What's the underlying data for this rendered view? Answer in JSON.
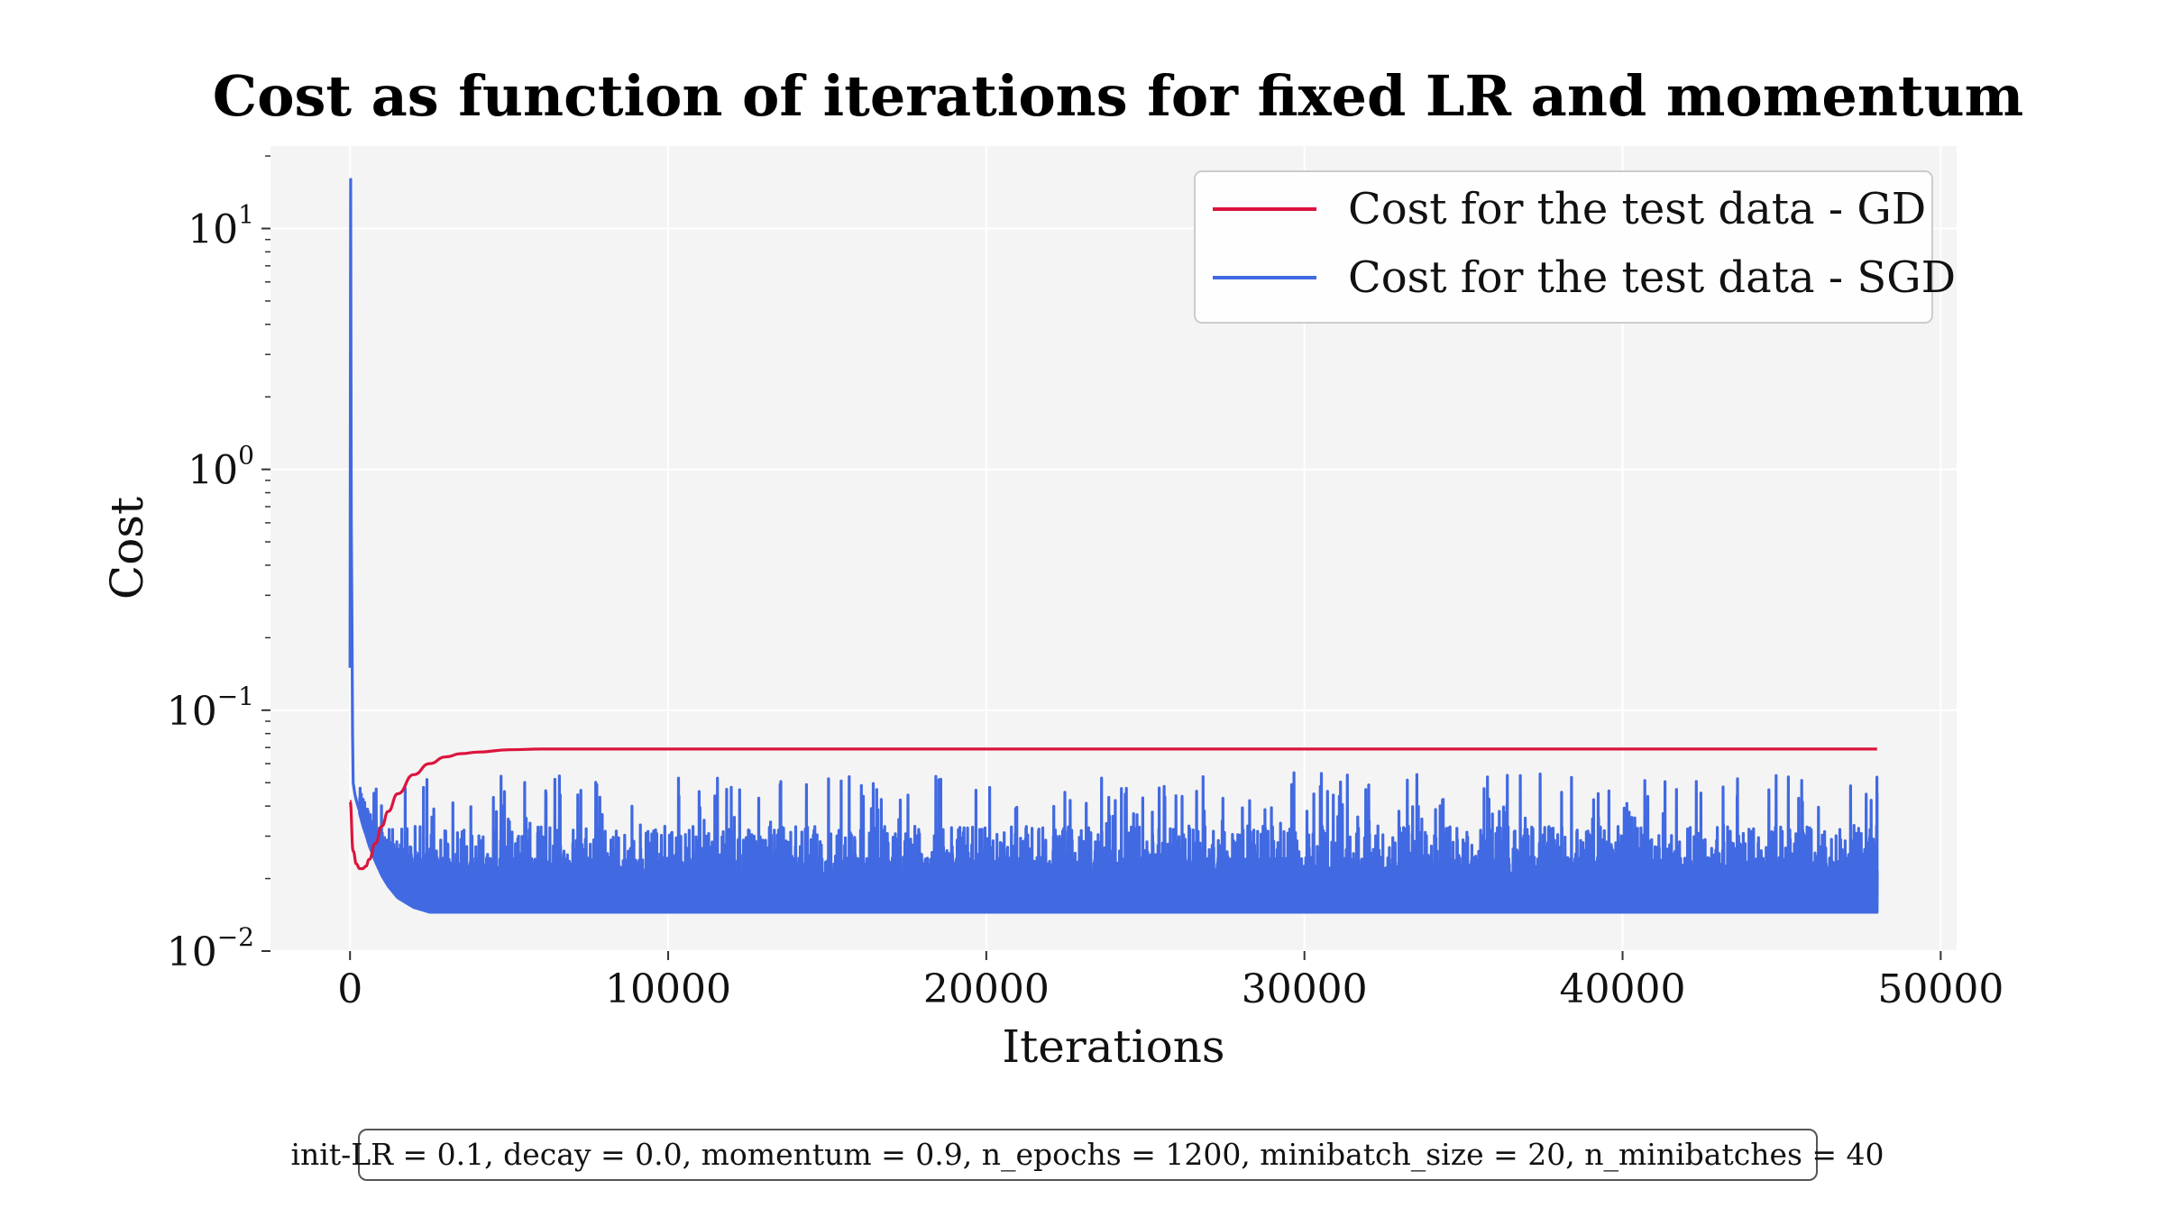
{
  "chart_data": {
    "type": "line",
    "title": "Cost as function of iterations for fixed LR and momentum",
    "xlabel": "Iterations",
    "ylabel": "Cost",
    "xlim": [
      -2500,
      50500
    ],
    "ylim": [
      0.01,
      22
    ],
    "yscale": "log",
    "grid": true,
    "legend_position": "top-right",
    "x_ticks": [
      {
        "value": 0,
        "label": "0"
      },
      {
        "value": 10000,
        "label": "10000"
      },
      {
        "value": 20000,
        "label": "20000"
      },
      {
        "value": 30000,
        "label": "30000"
      },
      {
        "value": 40000,
        "label": "40000"
      },
      {
        "value": 50000,
        "label": "50000"
      }
    ],
    "y_ticks": [
      {
        "value": 0.01,
        "base": "10",
        "exp": "−2"
      },
      {
        "value": 0.1,
        "base": "10",
        "exp": "−1"
      },
      {
        "value": 1,
        "base": "10",
        "exp": "0"
      },
      {
        "value": 10,
        "base": "10",
        "exp": "1"
      }
    ],
    "series": [
      {
        "name": "Cost for the test data - GD",
        "color": "#dc143c",
        "style": "smooth",
        "x": [
          0,
          100,
          200,
          300,
          400,
          500,
          600,
          800,
          1000,
          1200,
          1500,
          2000,
          2500,
          3000,
          3500,
          4000,
          5000,
          6000,
          8000,
          10000,
          20000,
          30000,
          40000,
          48000
        ],
        "y": [
          0.042,
          0.026,
          0.023,
          0.022,
          0.022,
          0.0225,
          0.024,
          0.028,
          0.033,
          0.038,
          0.045,
          0.054,
          0.06,
          0.064,
          0.066,
          0.067,
          0.0685,
          0.069,
          0.069,
          0.069,
          0.069,
          0.069,
          0.069,
          0.069
        ]
      },
      {
        "name": "Cost for the test data - SGD",
        "color": "#4169e1",
        "style": "noisy",
        "x": [
          0,
          20,
          40,
          60,
          80,
          100,
          150,
          200,
          300,
          400,
          500,
          600,
          800,
          1000,
          1200,
          1500,
          2000,
          2500,
          3000,
          48000
        ],
        "y": [
          0.15,
          16.0,
          0.6,
          0.25,
          0.08,
          0.05,
          0.045,
          0.042,
          0.038,
          0.034,
          0.031,
          0.028,
          0.024,
          0.021,
          0.019,
          0.017,
          0.0155,
          0.0148,
          0.0145,
          0.0145
        ],
        "noise_floor": 0.0145,
        "spike_max": 0.055
      }
    ]
  },
  "caption": {
    "text": "init-LR = 0.1, decay = 0.0, momentum = 0.9, n_epochs = 1200, minibatch_size = 20, n_minibatches = 40"
  }
}
